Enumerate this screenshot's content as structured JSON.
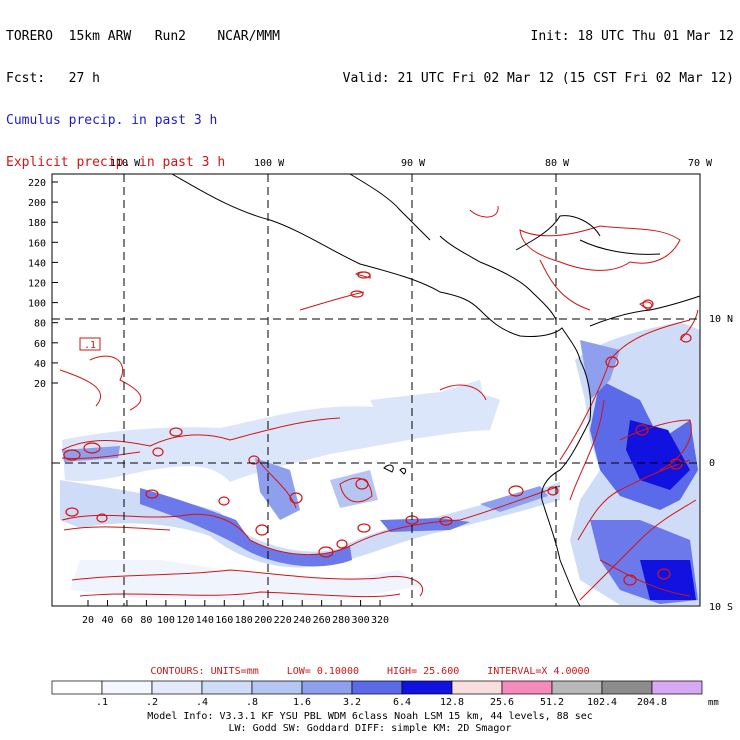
{
  "header": {
    "line1_left": "TORERO  15km ARW   Run2    NCAR/MMM",
    "line1_right": "Init: 18 UTC Thu 01 Mar 12",
    "line2_left": "Fcst:   27 h",
    "line2_right": "Valid: 21 UTC Fri 02 Mar 12 (15 CST Fri 02 Mar 12)",
    "cumulus_label": "Cumulus precip. in past 3 h",
    "explicit_label": "Explicit precip. in past 3 h"
  },
  "map": {
    "top_longitudes": [
      "110 W",
      "100 W",
      "90 W",
      "80 W",
      "70 W"
    ],
    "right_latitudes": [
      "10 N",
      "0",
      "10 S"
    ],
    "y_ticks": [
      "220",
      "200",
      "180",
      "160",
      "140",
      "120",
      "100",
      "80",
      "60",
      "40",
      "20"
    ],
    "x_ticks": [
      "20",
      "40",
      "60",
      "80",
      "100",
      "120",
      "140",
      "160",
      "180",
      "200",
      "220",
      "240",
      "260",
      "280",
      "300",
      "320"
    ],
    "box_label": ".1"
  },
  "contours": {
    "units": "CONTOURS:  UNITS=mm",
    "low": "LOW= 0.10000",
    "high": "HIGH=  25.600",
    "interval": "INTERVAL=X  4.0000"
  },
  "colorbar": {
    "labels": [
      ".1",
      ".2",
      ".4",
      ".8",
      "1.6",
      "3.2",
      "6.4",
      "12.8",
      "25.6",
      "51.2",
      "102.4",
      "204.8"
    ],
    "unit": "mm",
    "colors": [
      "#ffffff",
      "#f4f7fd",
      "#e3ebfb",
      "#cfdcf7",
      "#b6c6f3",
      "#8e9fee",
      "#5b6ae8",
      "#1111e0",
      "#f9dede",
      "#f48bbb",
      "#b8b8b8",
      "#8c8c8c",
      "#d6a9f2"
    ]
  },
  "footer": {
    "line1": "Model Info: V3.3.1   KF     YSU PBL   WDM 6class   Noah LSM   15 km,    44 levels,    88 sec",
    "line2": "LW: Godd SW: Goddard DIFF: simple KM: 2D Smagor"
  }
}
